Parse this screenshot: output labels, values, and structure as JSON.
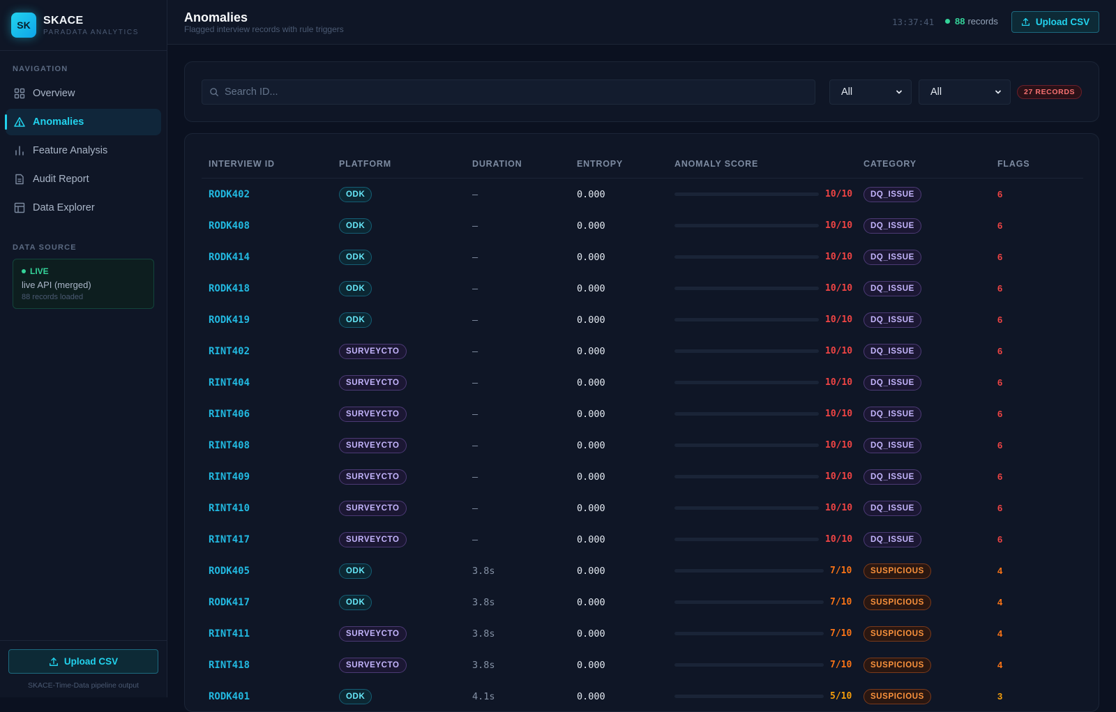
{
  "brand": {
    "logo": "SK",
    "name": "SKACE",
    "subtitle": "PARADATA ANALYTICS"
  },
  "nav": {
    "label": "NAVIGATION",
    "items": [
      {
        "label": "Overview",
        "icon": "grid-icon",
        "active": false
      },
      {
        "label": "Anomalies",
        "icon": "warning-triangle-icon",
        "active": true
      },
      {
        "label": "Feature Analysis",
        "icon": "bar-chart-icon",
        "active": false
      },
      {
        "label": "Audit Report",
        "icon": "document-icon",
        "active": false
      },
      {
        "label": "Data Explorer",
        "icon": "table-icon",
        "active": false
      }
    ]
  },
  "data_source": {
    "label": "DATA SOURCE",
    "status": "LIVE",
    "source": "live API (merged)",
    "count": "88 records loaded"
  },
  "sidebar_footer": {
    "upload_label": "Upload CSV",
    "caption": "SKACE-Time-Data pipeline output"
  },
  "header": {
    "title": "Anomalies",
    "subtitle": "Flagged interview records with rule triggers",
    "clock": "13:37:41",
    "records_count": "88",
    "records_label": "records",
    "upload_label": "Upload CSV"
  },
  "filters": {
    "search_placeholder": "Search ID...",
    "platform_value": "All",
    "category_value": "All",
    "result_badge": "27 RECORDS"
  },
  "colors": {
    "accent": "#22d3ee",
    "critical": "#ef4444",
    "warning": "#f97316",
    "caution": "#f59e0b",
    "live": "#34d399"
  },
  "table": {
    "columns": [
      "INTERVIEW ID",
      "PLATFORM",
      "DURATION",
      "ENTROPY",
      "ANOMALY SCORE",
      "CATEGORY",
      "FLAGS"
    ],
    "rows": [
      {
        "id": "RODK402",
        "platform": "ODK",
        "duration": "—",
        "entropy": "0.000",
        "score": 10,
        "score_text": "10/10",
        "category": "DQ_ISSUE",
        "flags": "6"
      },
      {
        "id": "RODK408",
        "platform": "ODK",
        "duration": "—",
        "entropy": "0.000",
        "score": 10,
        "score_text": "10/10",
        "category": "DQ_ISSUE",
        "flags": "6"
      },
      {
        "id": "RODK414",
        "platform": "ODK",
        "duration": "—",
        "entropy": "0.000",
        "score": 10,
        "score_text": "10/10",
        "category": "DQ_ISSUE",
        "flags": "6"
      },
      {
        "id": "RODK418",
        "platform": "ODK",
        "duration": "—",
        "entropy": "0.000",
        "score": 10,
        "score_text": "10/10",
        "category": "DQ_ISSUE",
        "flags": "6"
      },
      {
        "id": "RODK419",
        "platform": "ODK",
        "duration": "—",
        "entropy": "0.000",
        "score": 10,
        "score_text": "10/10",
        "category": "DQ_ISSUE",
        "flags": "6"
      },
      {
        "id": "RINT402",
        "platform": "SURVEYCTO",
        "duration": "—",
        "entropy": "0.000",
        "score": 10,
        "score_text": "10/10",
        "category": "DQ_ISSUE",
        "flags": "6"
      },
      {
        "id": "RINT404",
        "platform": "SURVEYCTO",
        "duration": "—",
        "entropy": "0.000",
        "score": 10,
        "score_text": "10/10",
        "category": "DQ_ISSUE",
        "flags": "6"
      },
      {
        "id": "RINT406",
        "platform": "SURVEYCTO",
        "duration": "—",
        "entropy": "0.000",
        "score": 10,
        "score_text": "10/10",
        "category": "DQ_ISSUE",
        "flags": "6"
      },
      {
        "id": "RINT408",
        "platform": "SURVEYCTO",
        "duration": "—",
        "entropy": "0.000",
        "score": 10,
        "score_text": "10/10",
        "category": "DQ_ISSUE",
        "flags": "6"
      },
      {
        "id": "RINT409",
        "platform": "SURVEYCTO",
        "duration": "—",
        "entropy": "0.000",
        "score": 10,
        "score_text": "10/10",
        "category": "DQ_ISSUE",
        "flags": "6"
      },
      {
        "id": "RINT410",
        "platform": "SURVEYCTO",
        "duration": "—",
        "entropy": "0.000",
        "score": 10,
        "score_text": "10/10",
        "category": "DQ_ISSUE",
        "flags": "6"
      },
      {
        "id": "RINT417",
        "platform": "SURVEYCTO",
        "duration": "—",
        "entropy": "0.000",
        "score": 10,
        "score_text": "10/10",
        "category": "DQ_ISSUE",
        "flags": "6"
      },
      {
        "id": "RODK405",
        "platform": "ODK",
        "duration": "3.8s",
        "entropy": "0.000",
        "score": 7,
        "score_text": "7/10",
        "category": "SUSPICIOUS",
        "flags": "4"
      },
      {
        "id": "RODK417",
        "platform": "ODK",
        "duration": "3.8s",
        "entropy": "0.000",
        "score": 7,
        "score_text": "7/10",
        "category": "SUSPICIOUS",
        "flags": "4"
      },
      {
        "id": "RINT411",
        "platform": "SURVEYCTO",
        "duration": "3.8s",
        "entropy": "0.000",
        "score": 7,
        "score_text": "7/10",
        "category": "SUSPICIOUS",
        "flags": "4"
      },
      {
        "id": "RINT418",
        "platform": "SURVEYCTO",
        "duration": "3.8s",
        "entropy": "0.000",
        "score": 7,
        "score_text": "7/10",
        "category": "SUSPICIOUS",
        "flags": "4"
      },
      {
        "id": "RODK401",
        "platform": "ODK",
        "duration": "4.1s",
        "entropy": "0.000",
        "score": 5,
        "score_text": "5/10",
        "category": "SUSPICIOUS",
        "flags": "3"
      }
    ]
  }
}
